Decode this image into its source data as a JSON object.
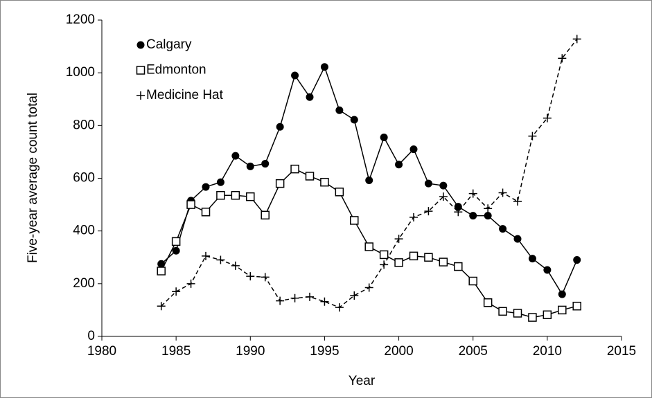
{
  "chart_data": {
    "type": "line",
    "xlabel": "Year",
    "ylabel": "Five-year average count total",
    "x": [
      1984,
      1985,
      1986,
      1987,
      1988,
      1989,
      1990,
      1991,
      1992,
      1993,
      1994,
      1995,
      1996,
      1997,
      1998,
      1999,
      2000,
      2001,
      2002,
      2003,
      2004,
      2005,
      2006,
      2007,
      2008,
      2009,
      2010,
      2011,
      2012
    ],
    "series": [
      {
        "name": "Calgary",
        "color": "#000000",
        "marker": "circle",
        "dash": "solid",
        "values": [
          275,
          325,
          515,
          567,
          585,
          685,
          645,
          655,
          795,
          990,
          908,
          1022,
          858,
          822,
          592,
          755,
          652,
          710,
          580,
          572,
          492,
          458,
          458,
          408,
          370,
          295,
          252,
          160,
          290
        ]
      },
      {
        "name": "Edmonton",
        "color": "#000000",
        "marker": "square",
        "dash": "solid",
        "values": [
          248,
          360,
          500,
          472,
          535,
          535,
          530,
          460,
          580,
          635,
          608,
          585,
          548,
          440,
          340,
          310,
          280,
          305,
          300,
          282,
          265,
          210,
          128,
          95,
          88,
          72,
          82,
          100,
          115
        ]
      },
      {
        "name": "Medicine Hat",
        "color": "#000000",
        "marker": "plus",
        "dash": "dashed",
        "values": [
          115,
          170,
          200,
          305,
          290,
          268,
          228,
          225,
          135,
          145,
          150,
          132,
          110,
          155,
          185,
          272,
          370,
          452,
          475,
          530,
          472,
          542,
          485,
          545,
          512,
          760,
          828,
          1055,
          1128
        ]
      }
    ],
    "xlim": [
      1980,
      2015
    ],
    "xticks": [
      1980,
      1985,
      1990,
      1995,
      2000,
      2005,
      2010,
      2015
    ],
    "ylim": [
      0,
      1200
    ],
    "yticks": [
      0,
      200,
      400,
      600,
      800,
      1000,
      1200
    ],
    "grid": false,
    "legend": "upper left"
  }
}
